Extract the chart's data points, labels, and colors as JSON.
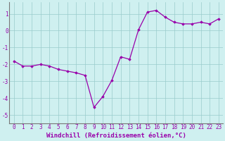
{
  "x": [
    0,
    1,
    2,
    3,
    4,
    5,
    6,
    7,
    8,
    9,
    10,
    11,
    12,
    13,
    14,
    15,
    16,
    17,
    18,
    19,
    20,
    21,
    22,
    23
  ],
  "y": [
    -1.8,
    -2.1,
    -2.1,
    -2.0,
    -2.1,
    -2.3,
    -2.4,
    -2.5,
    -2.65,
    -4.55,
    -3.9,
    -2.95,
    -1.55,
    -1.7,
    0.05,
    1.1,
    1.2,
    0.8,
    0.5,
    0.4,
    0.4,
    0.5,
    0.4,
    0.7
  ],
  "line_color": "#9900aa",
  "marker": "D",
  "marker_size": 1.8,
  "line_width": 0.9,
  "xlabel": "Windchill (Refroidissement éolien,°C)",
  "ylim": [
    -5.5,
    1.7
  ],
  "xlim": [
    -0.5,
    23.5
  ],
  "yticks": [
    -5,
    -4,
    -3,
    -2,
    -1,
    0,
    1
  ],
  "xticks": [
    0,
    1,
    2,
    3,
    4,
    5,
    6,
    7,
    8,
    9,
    10,
    11,
    12,
    13,
    14,
    15,
    16,
    17,
    18,
    19,
    20,
    21,
    22,
    23
  ],
  "bg_color": "#cff0f0",
  "grid_color": "#99cccc",
  "axis_color": "#777777",
  "label_color": "#9900aa",
  "tick_label_color": "#9900aa",
  "xlabel_fontsize": 6.5,
  "tick_fontsize": 5.5,
  "fig_width": 3.2,
  "fig_height": 2.0,
  "dpi": 100
}
